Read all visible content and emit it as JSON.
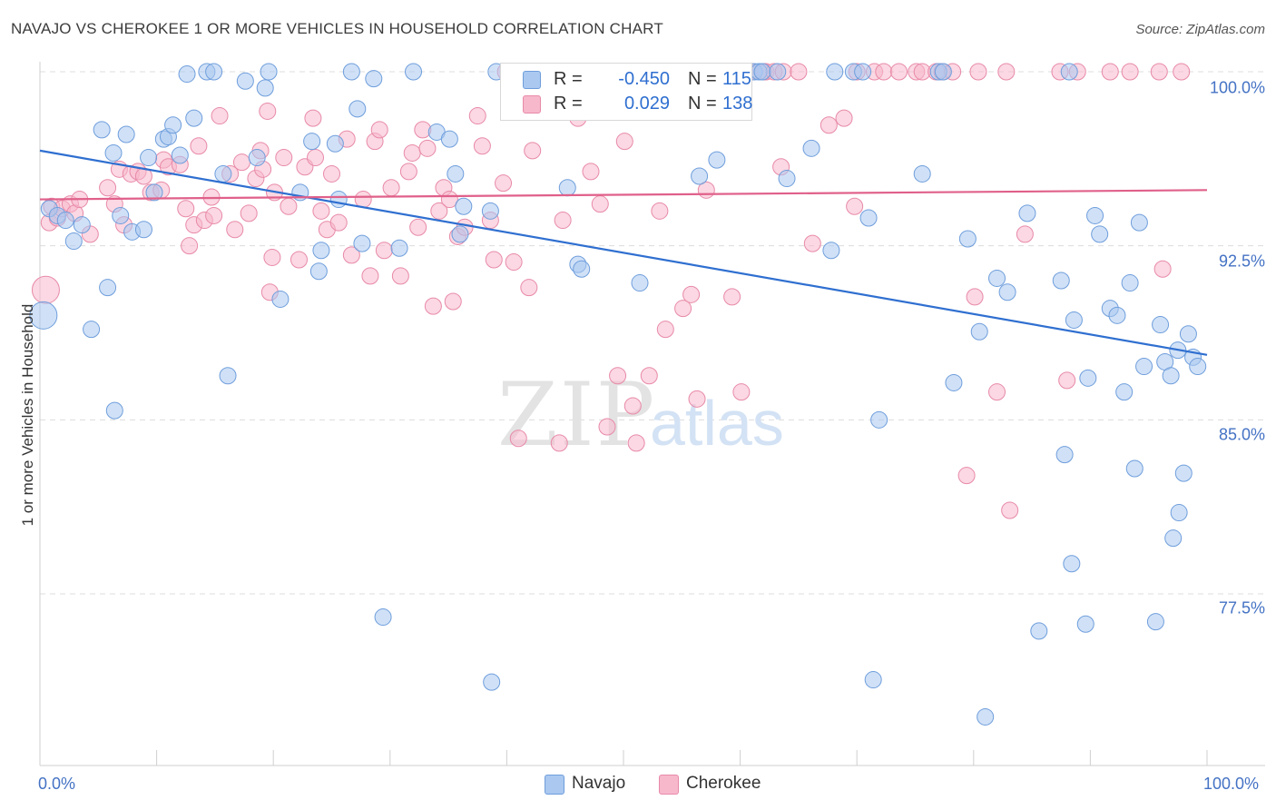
{
  "title": "NAVAJO VS CHEROKEE 1 OR MORE VEHICLES IN HOUSEHOLD CORRELATION CHART",
  "source": "Source: ZipAtlas.com",
  "watermark": {
    "zip": "ZIP",
    "atlas": "atlas"
  },
  "legend_stats": {
    "navajo": {
      "r_label": "R =",
      "r_value": "-0.450",
      "n_label": "N =",
      "n_value": "115"
    },
    "cherokee": {
      "r_label": "R =",
      "r_value": "0.029",
      "n_label": "N =",
      "n_value": "138"
    }
  },
  "chart_data": {
    "type": "scatter",
    "title": "NAVAJO VS CHEROKEE 1 OR MORE VEHICLES IN HOUSEHOLD CORRELATION CHART",
    "xlabel": "",
    "ylabel": "1 or more Vehicles in Household",
    "xlim": [
      0,
      100
    ],
    "ylim": [
      71,
      101
    ],
    "x_tick_labels": [
      "0.0%",
      "100.0%"
    ],
    "y_ticks": [
      100.0,
      92.5,
      85.0,
      77.5
    ],
    "y_tick_labels": [
      "100.0%",
      "92.5%",
      "85.0%",
      "77.5%"
    ],
    "grid": true,
    "legend_position": "bottom-center",
    "colors": {
      "navajo": "#aac8f0",
      "navajo_line": "#2f6fd0",
      "cherokee": "#f7b8cc",
      "cherokee_line": "#e0608a",
      "tick_text": "#4472c4"
    },
    "series": [
      {
        "name": "Navajo",
        "trend": {
          "x": [
            0,
            100
          ],
          "y": [
            96.6,
            87.8
          ]
        },
        "points": [
          [
            0.3,
            89.5
          ],
          [
            0.8,
            94.1
          ],
          [
            1.5,
            93.8
          ],
          [
            2.2,
            93.6
          ],
          [
            2.9,
            92.7
          ],
          [
            3.6,
            93.4
          ],
          [
            4.4,
            88.9
          ],
          [
            5.3,
            97.5
          ],
          [
            5.8,
            90.7
          ],
          [
            6.3,
            96.5
          ],
          [
            6.4,
            85.4
          ],
          [
            6.9,
            93.8
          ],
          [
            7.4,
            97.3
          ],
          [
            7.9,
            93.1
          ],
          [
            8.9,
            93.2
          ],
          [
            9.3,
            96.3
          ],
          [
            9.8,
            94.8
          ],
          [
            10.6,
            97.1
          ],
          [
            11.0,
            97.2
          ],
          [
            11.4,
            97.7
          ],
          [
            12.0,
            96.4
          ],
          [
            12.6,
            99.9
          ],
          [
            13.2,
            98.0
          ],
          [
            14.3,
            100.0
          ],
          [
            14.9,
            100.0
          ],
          [
            15.7,
            95.6
          ],
          [
            16.1,
            86.9
          ],
          [
            17.6,
            99.6
          ],
          [
            18.6,
            96.3
          ],
          [
            19.3,
            99.3
          ],
          [
            19.6,
            100.0
          ],
          [
            20.6,
            90.2
          ],
          [
            22.3,
            94.8
          ],
          [
            23.3,
            97.0
          ],
          [
            23.9,
            91.4
          ],
          [
            24.1,
            92.3
          ],
          [
            25.3,
            96.9
          ],
          [
            25.6,
            94.5
          ],
          [
            26.7,
            100.0
          ],
          [
            27.2,
            98.4
          ],
          [
            27.6,
            92.6
          ],
          [
            28.6,
            99.7
          ],
          [
            29.4,
            76.5
          ],
          [
            30.8,
            92.4
          ],
          [
            32.0,
            100.0
          ],
          [
            34.0,
            97.4
          ],
          [
            35.1,
            97.1
          ],
          [
            35.6,
            95.6
          ],
          [
            36.0,
            93.0
          ],
          [
            36.3,
            94.2
          ],
          [
            38.6,
            94.0
          ],
          [
            38.7,
            73.7
          ],
          [
            39.1,
            100.0
          ],
          [
            40.3,
            100.0
          ],
          [
            40.9,
            100.0
          ],
          [
            42.4,
            100.0
          ],
          [
            44.2,
            100.0
          ],
          [
            45.2,
            95.0
          ],
          [
            46.1,
            91.7
          ],
          [
            46.4,
            91.5
          ],
          [
            51.4,
            90.9
          ],
          [
            53.1,
            100.0
          ],
          [
            56.5,
            95.5
          ],
          [
            58.0,
            96.2
          ],
          [
            61.2,
            100.0
          ],
          [
            61.6,
            100.0
          ],
          [
            61.9,
            100.0
          ],
          [
            63.2,
            100.0
          ],
          [
            64.0,
            95.4
          ],
          [
            66.1,
            96.7
          ],
          [
            67.8,
            92.3
          ],
          [
            68.1,
            100.0
          ],
          [
            69.7,
            100.0
          ],
          [
            70.5,
            100.0
          ],
          [
            71.0,
            93.7
          ],
          [
            71.4,
            73.8
          ],
          [
            71.9,
            85.0
          ],
          [
            75.6,
            95.6
          ],
          [
            77.0,
            100.0
          ],
          [
            77.4,
            100.0
          ],
          [
            78.3,
            86.6
          ],
          [
            79.5,
            92.8
          ],
          [
            80.5,
            88.8
          ],
          [
            81.0,
            72.2
          ],
          [
            82.0,
            91.1
          ],
          [
            82.9,
            90.5
          ],
          [
            84.6,
            93.9
          ],
          [
            85.6,
            75.9
          ],
          [
            87.5,
            91.0
          ],
          [
            87.8,
            83.5
          ],
          [
            88.2,
            100.0
          ],
          [
            88.4,
            78.8
          ],
          [
            88.6,
            89.3
          ],
          [
            89.6,
            76.2
          ],
          [
            89.8,
            86.8
          ],
          [
            90.4,
            93.8
          ],
          [
            90.8,
            93.0
          ],
          [
            91.7,
            89.8
          ],
          [
            92.3,
            89.5
          ],
          [
            92.9,
            86.2
          ],
          [
            93.4,
            90.9
          ],
          [
            93.8,
            82.9
          ],
          [
            94.2,
            93.5
          ],
          [
            94.6,
            87.3
          ],
          [
            95.6,
            76.3
          ],
          [
            96.0,
            89.1
          ],
          [
            96.4,
            87.5
          ],
          [
            96.9,
            86.9
          ],
          [
            97.1,
            79.9
          ],
          [
            97.5,
            88.0
          ],
          [
            97.6,
            81.0
          ],
          [
            98.0,
            82.7
          ],
          [
            98.4,
            88.7
          ],
          [
            98.8,
            87.7
          ],
          [
            99.2,
            87.3
          ]
        ]
      },
      {
        "name": "Cherokee",
        "trend": {
          "x": [
            0,
            100
          ],
          "y": [
            94.5,
            94.9
          ]
        },
        "points": [
          [
            0.5,
            90.6
          ],
          [
            0.8,
            93.5
          ],
          [
            1.0,
            94.2
          ],
          [
            1.5,
            93.7
          ],
          [
            1.9,
            94.1
          ],
          [
            2.6,
            94.3
          ],
          [
            3.0,
            93.9
          ],
          [
            3.4,
            94.5
          ],
          [
            4.3,
            93.0
          ],
          [
            5.8,
            95.0
          ],
          [
            6.4,
            94.3
          ],
          [
            6.8,
            95.8
          ],
          [
            7.2,
            93.4
          ],
          [
            7.8,
            95.6
          ],
          [
            8.4,
            95.7
          ],
          [
            8.9,
            95.5
          ],
          [
            9.5,
            94.8
          ],
          [
            10.4,
            94.9
          ],
          [
            10.6,
            96.2
          ],
          [
            11.0,
            95.9
          ],
          [
            12.0,
            96.0
          ],
          [
            12.5,
            94.1
          ],
          [
            12.8,
            92.5
          ],
          [
            13.2,
            93.4
          ],
          [
            13.6,
            96.8
          ],
          [
            14.1,
            93.6
          ],
          [
            14.7,
            94.6
          ],
          [
            14.9,
            93.8
          ],
          [
            15.4,
            98.1
          ],
          [
            16.3,
            95.6
          ],
          [
            16.7,
            93.2
          ],
          [
            17.3,
            96.1
          ],
          [
            17.9,
            93.9
          ],
          [
            18.5,
            95.4
          ],
          [
            18.9,
            96.6
          ],
          [
            19.1,
            95.8
          ],
          [
            19.5,
            98.3
          ],
          [
            19.7,
            90.5
          ],
          [
            19.9,
            92.0
          ],
          [
            20.1,
            94.8
          ],
          [
            20.9,
            96.3
          ],
          [
            21.3,
            94.2
          ],
          [
            22.2,
            91.9
          ],
          [
            22.7,
            95.9
          ],
          [
            23.4,
            98.0
          ],
          [
            23.6,
            96.3
          ],
          [
            24.1,
            94.0
          ],
          [
            24.6,
            93.2
          ],
          [
            25.0,
            95.6
          ],
          [
            25.6,
            93.5
          ],
          [
            26.3,
            97.1
          ],
          [
            26.7,
            92.1
          ],
          [
            27.7,
            94.5
          ],
          [
            28.3,
            91.2
          ],
          [
            28.7,
            97.0
          ],
          [
            29.1,
            97.5
          ],
          [
            29.5,
            92.3
          ],
          [
            30.1,
            95.0
          ],
          [
            30.9,
            91.2
          ],
          [
            31.6,
            95.7
          ],
          [
            31.9,
            96.5
          ],
          [
            32.4,
            93.3
          ],
          [
            32.8,
            97.5
          ],
          [
            33.2,
            96.7
          ],
          [
            33.7,
            89.9
          ],
          [
            34.2,
            94.0
          ],
          [
            34.6,
            95.0
          ],
          [
            35.1,
            94.5
          ],
          [
            35.4,
            90.1
          ],
          [
            35.8,
            92.9
          ],
          [
            36.4,
            93.3
          ],
          [
            37.5,
            98.1
          ],
          [
            37.9,
            96.8
          ],
          [
            38.6,
            93.6
          ],
          [
            38.9,
            91.9
          ],
          [
            39.7,
            95.2
          ],
          [
            39.9,
            100.0
          ],
          [
            40.6,
            91.8
          ],
          [
            41.0,
            84.2
          ],
          [
            41.2,
            100.0
          ],
          [
            41.9,
            90.7
          ],
          [
            42.2,
            96.6
          ],
          [
            44.5,
            84.0
          ],
          [
            44.8,
            93.6
          ],
          [
            46.1,
            98.0
          ],
          [
            47.2,
            95.7
          ],
          [
            48.0,
            94.3
          ],
          [
            48.6,
            84.7
          ],
          [
            49.5,
            86.9
          ],
          [
            50.1,
            97.0
          ],
          [
            50.8,
            85.6
          ],
          [
            51.1,
            84.0
          ],
          [
            51.6,
            100.0
          ],
          [
            52.2,
            86.9
          ],
          [
            53.1,
            94.0
          ],
          [
            53.6,
            88.9
          ],
          [
            55.1,
            89.8
          ],
          [
            55.2,
            100.0
          ],
          [
            55.8,
            90.4
          ],
          [
            56.3,
            85.9
          ],
          [
            57.1,
            94.9
          ],
          [
            58.6,
            100.0
          ],
          [
            59.3,
            90.3
          ],
          [
            60.1,
            86.2
          ],
          [
            60.4,
            100.0
          ],
          [
            60.7,
            100.0
          ],
          [
            61.0,
            100.0
          ],
          [
            62.0,
            100.0
          ],
          [
            62.2,
            100.0
          ],
          [
            62.9,
            100.0
          ],
          [
            63.5,
            95.9
          ],
          [
            63.7,
            100.0
          ],
          [
            65.0,
            100.0
          ],
          [
            66.2,
            92.6
          ],
          [
            67.6,
            97.7
          ],
          [
            68.9,
            98.0
          ],
          [
            69.8,
            94.2
          ],
          [
            70.0,
            100.0
          ],
          [
            71.5,
            100.0
          ],
          [
            72.3,
            100.0
          ],
          [
            73.6,
            100.0
          ],
          [
            75.1,
            100.0
          ],
          [
            75.6,
            100.0
          ],
          [
            76.8,
            100.0
          ],
          [
            77.3,
            100.0
          ],
          [
            78.2,
            100.0
          ],
          [
            79.4,
            82.6
          ],
          [
            80.1,
            90.3
          ],
          [
            80.4,
            100.0
          ],
          [
            82.0,
            86.2
          ],
          [
            82.8,
            100.0
          ],
          [
            83.1,
            81.1
          ],
          [
            84.4,
            93.0
          ],
          [
            87.4,
            100.0
          ],
          [
            88.0,
            86.7
          ],
          [
            88.9,
            100.0
          ],
          [
            91.7,
            100.0
          ],
          [
            93.4,
            100.0
          ],
          [
            95.9,
            100.0
          ],
          [
            96.2,
            91.5
          ],
          [
            97.8,
            100.0
          ]
        ]
      }
    ]
  },
  "bottom_legend": {
    "navajo": "Navajo",
    "cherokee": "Cherokee"
  }
}
